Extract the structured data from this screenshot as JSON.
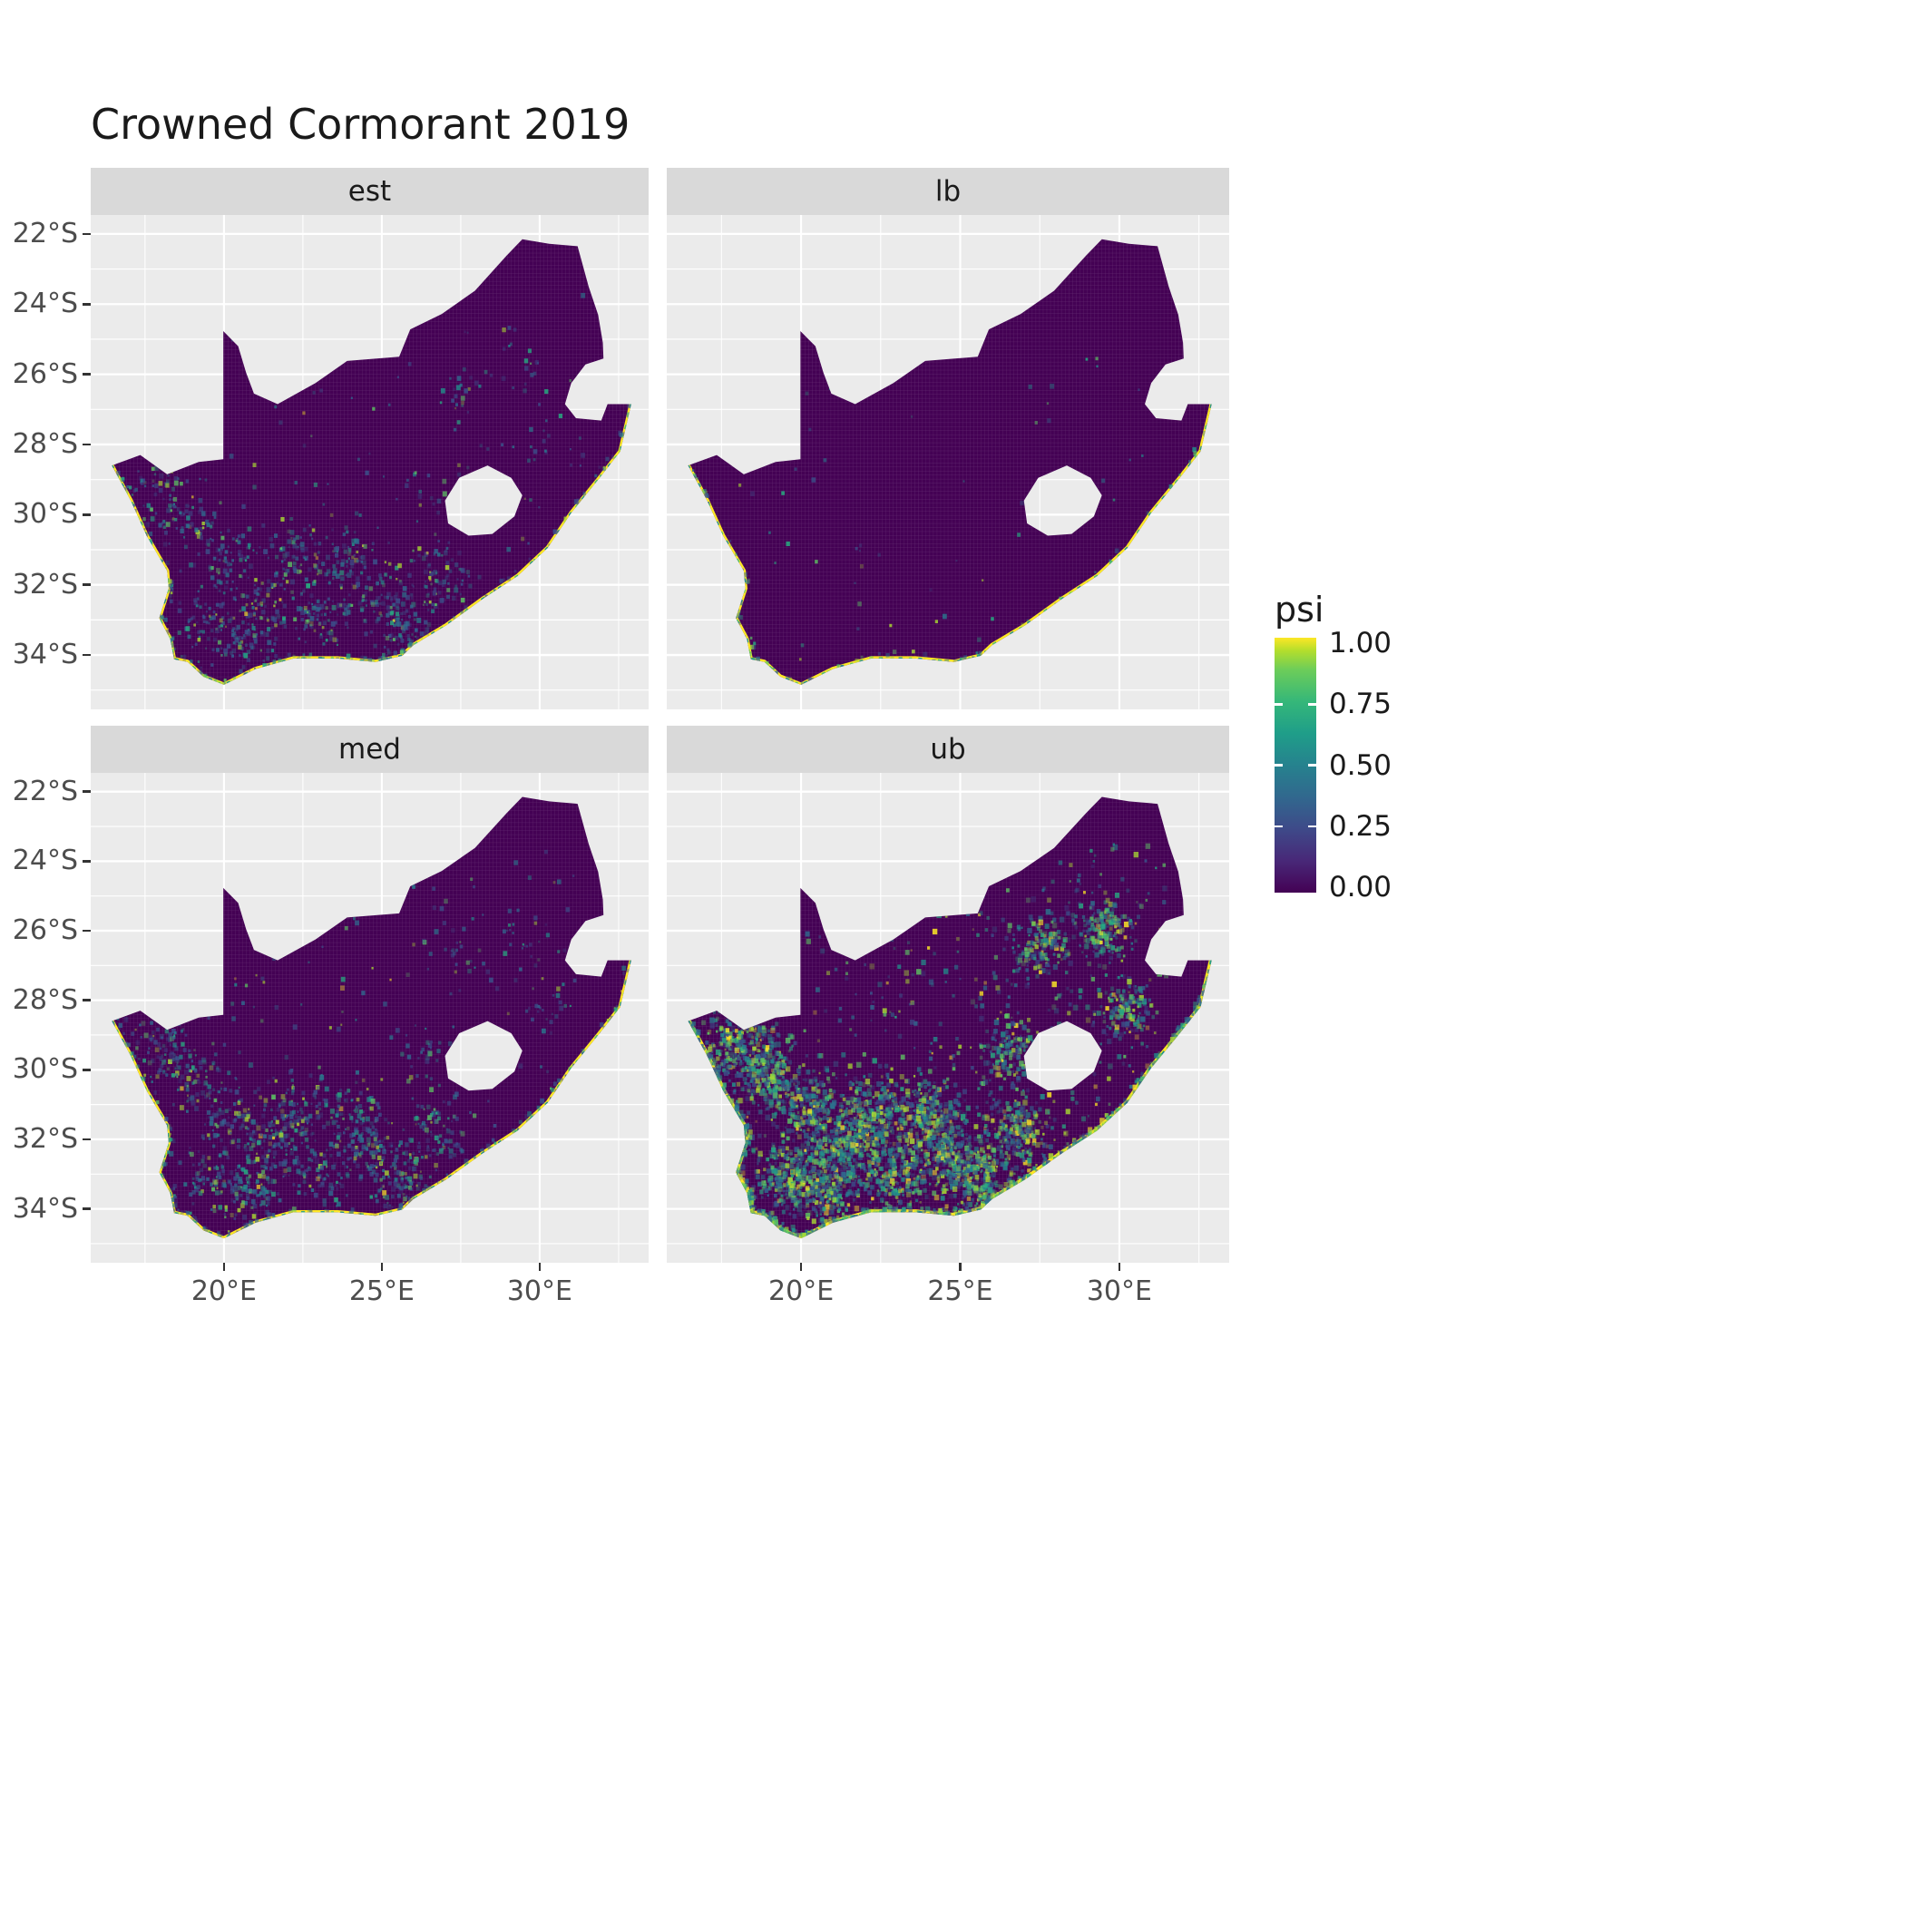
{
  "title": "Crowned Cormorant 2019",
  "chart_data": {
    "type": "heatmap",
    "title": "Crowned Cormorant 2019",
    "description": "Faceted raster maps of South Africa showing occupancy probability (psi) per grid cell; fill is viridis scale, mostly near 0 (dark purple) inland with values near 1 (yellow) along the coastline.",
    "facets": [
      {
        "label": "est",
        "coast_width": 0.13,
        "speckles": {
          "seed": 7,
          "count": 1300,
          "coast_frac": 0.18,
          "ne_frac": 0.05,
          "uniform_frac": 0.12,
          "brightness": 0.25,
          "size": 0.1,
          "yellow_chance": 0.012
        }
      },
      {
        "label": "lb",
        "coast_width": 0.13,
        "speckles": {
          "seed": 8,
          "count": 220,
          "coast_frac": 0.75,
          "ne_frac": 0.05,
          "uniform_frac": 0.1,
          "brightness": 0.5,
          "size": 0.1,
          "yellow_chance": 0.01
        }
      },
      {
        "label": "med",
        "coast_width": 0.13,
        "speckles": {
          "seed": 9,
          "count": 1600,
          "coast_frac": 0.15,
          "ne_frac": 0.05,
          "uniform_frac": 0.12,
          "brightness": 0.3,
          "size": 0.1,
          "yellow_chance": 0.012
        }
      },
      {
        "label": "ub",
        "coast_width": 0.17,
        "speckles": {
          "seed": 10,
          "count": 5200,
          "coast_frac": 0.2,
          "ne_frac": 0.12,
          "uniform_frac": 0.14,
          "brightness": 0.65,
          "size": 0.11,
          "yellow_chance": 0.05
        }
      }
    ],
    "x_ticks": [
      {
        "value": 20,
        "label": "20°E"
      },
      {
        "value": 25,
        "label": "25°E"
      },
      {
        "value": 30,
        "label": "30°E"
      }
    ],
    "y_ticks": [
      {
        "value": -22,
        "label": "22°S"
      },
      {
        "value": -24,
        "label": "24°S"
      },
      {
        "value": -26,
        "label": "26°S"
      },
      {
        "value": -28,
        "label": "28°S"
      },
      {
        "value": -30,
        "label": "30°S"
      },
      {
        "value": -32,
        "label": "32°S"
      },
      {
        "value": -34,
        "label": "34°S"
      }
    ],
    "xlim": [
      15.78,
      33.45
    ],
    "ylim": [
      -35.55,
      -21.46
    ],
    "grid": true,
    "legend_position": "right",
    "legend": {
      "title": "psi",
      "ticks": [
        {
          "value": 1.0,
          "label": "1.00"
        },
        {
          "value": 0.75,
          "label": "0.75"
        },
        {
          "value": 0.5,
          "label": "0.50"
        },
        {
          "value": 0.25,
          "label": "0.25"
        },
        {
          "value": 0.0,
          "label": "0.00"
        }
      ],
      "stops": [
        [
          0,
          "#440154"
        ],
        [
          0.125,
          "#482878"
        ],
        [
          0.25,
          "#3E4A89"
        ],
        [
          0.375,
          "#31688E"
        ],
        [
          0.5,
          "#26828E"
        ],
        [
          0.625,
          "#1F9E89"
        ],
        [
          0.75,
          "#35B779"
        ],
        [
          0.875,
          "#6DCD59"
        ],
        [
          0.95,
          "#B4DE2C"
        ],
        [
          1,
          "#FDE725"
        ]
      ]
    },
    "colors": {
      "panel_bg": "#EBEBEB",
      "grid_major": "#FFFFFF",
      "grid_minor": "#FFFFFF",
      "strip_bg": "#D9D9D9",
      "base_fill": "#440154",
      "coast": "#FDE725",
      "coast_teal": "#21918C",
      "coast_green": "#5DC863",
      "axis_text": "#4D4D4D",
      "text": "#1A1A1A",
      "speckle_palette": [
        "#3B528B",
        "#31688E",
        "#2A788E",
        "#21918C",
        "#27AD81",
        "#5DC863",
        "#AADC32"
      ]
    },
    "map": {
      "outline": [
        [
          16.45,
          -28.6
        ],
        [
          17.35,
          -28.3
        ],
        [
          18.2,
          -28.85
        ],
        [
          19.2,
          -28.5
        ],
        [
          19.98,
          -28.42
        ],
        [
          19.98,
          -24.77
        ],
        [
          20.45,
          -25.2
        ],
        [
          20.7,
          -25.95
        ],
        [
          20.95,
          -26.55
        ],
        [
          21.7,
          -26.85
        ],
        [
          22.9,
          -26.25
        ],
        [
          23.9,
          -25.62
        ],
        [
          25.55,
          -25.5
        ],
        [
          25.9,
          -24.72
        ],
        [
          26.9,
          -24.28
        ],
        [
          27.95,
          -23.62
        ],
        [
          28.95,
          -22.62
        ],
        [
          29.45,
          -22.15
        ],
        [
          30.3,
          -22.28
        ],
        [
          31.2,
          -22.35
        ],
        [
          31.55,
          -23.5
        ],
        [
          31.85,
          -24.3
        ],
        [
          32.0,
          -25.1
        ],
        [
          32.02,
          -25.55
        ],
        [
          31.45,
          -25.72
        ],
        [
          31.0,
          -26.25
        ],
        [
          30.8,
          -26.85
        ],
        [
          31.15,
          -27.25
        ],
        [
          31.95,
          -27.32
        ],
        [
          32.15,
          -26.85
        ],
        [
          32.9,
          -26.85
        ],
        [
          32.55,
          -28.2
        ],
        [
          31.9,
          -28.95
        ],
        [
          31.0,
          -29.95
        ],
        [
          30.25,
          -30.95
        ],
        [
          29.3,
          -31.75
        ],
        [
          28.2,
          -32.4
        ],
        [
          27.05,
          -33.15
        ],
        [
          26.0,
          -33.72
        ],
        [
          25.65,
          -34.02
        ],
        [
          24.8,
          -34.2
        ],
        [
          23.6,
          -34.1
        ],
        [
          22.2,
          -34.1
        ],
        [
          21.0,
          -34.4
        ],
        [
          20.0,
          -34.85
        ],
        [
          19.35,
          -34.62
        ],
        [
          18.85,
          -34.2
        ],
        [
          18.42,
          -34.12
        ],
        [
          18.3,
          -33.55
        ],
        [
          17.95,
          -32.95
        ],
        [
          18.25,
          -32.1
        ],
        [
          18.2,
          -31.6
        ],
        [
          17.55,
          -30.6
        ],
        [
          17.05,
          -29.6
        ],
        [
          16.75,
          -29.1
        ]
      ],
      "lesotho_hole": [
        [
          27.0,
          -29.6
        ],
        [
          27.45,
          -28.95
        ],
        [
          28.35,
          -28.6
        ],
        [
          29.1,
          -28.95
        ],
        [
          29.45,
          -29.45
        ],
        [
          29.2,
          -30.05
        ],
        [
          28.5,
          -30.55
        ],
        [
          27.75,
          -30.6
        ],
        [
          27.1,
          -30.25
        ]
      ],
      "coast": [
        [
          32.9,
          -26.85
        ],
        [
          32.55,
          -28.2
        ],
        [
          31.9,
          -28.95
        ],
        [
          31.0,
          -29.95
        ],
        [
          30.25,
          -30.95
        ],
        [
          29.3,
          -31.75
        ],
        [
          28.2,
          -32.4
        ],
        [
          27.05,
          -33.15
        ],
        [
          26.0,
          -33.72
        ],
        [
          25.65,
          -34.02
        ],
        [
          24.8,
          -34.2
        ],
        [
          23.6,
          -34.1
        ],
        [
          22.2,
          -34.1
        ],
        [
          21.0,
          -34.4
        ],
        [
          20.0,
          -34.85
        ],
        [
          19.35,
          -34.62
        ],
        [
          18.85,
          -34.2
        ],
        [
          18.42,
          -34.12
        ],
        [
          18.3,
          -33.55
        ],
        [
          17.95,
          -32.95
        ],
        [
          18.25,
          -32.1
        ],
        [
          18.2,
          -31.6
        ],
        [
          17.55,
          -30.6
        ],
        [
          17.05,
          -29.6
        ],
        [
          16.75,
          -29.1
        ],
        [
          16.45,
          -28.6
        ]
      ],
      "interior_clusters": [
        [
          18.0,
          -29.3
        ],
        [
          19.0,
          -30.2
        ],
        [
          20.3,
          -31.3
        ],
        [
          21.5,
          -32.4
        ],
        [
          23.0,
          -32.9
        ],
        [
          24.6,
          -32.4
        ],
        [
          22.2,
          -31.2
        ],
        [
          25.6,
          -33.1
        ],
        [
          19.6,
          -33.0
        ],
        [
          26.8,
          -31.8
        ],
        [
          20.8,
          -33.5
        ],
        [
          24.0,
          -31.3
        ]
      ],
      "ne_clusters": [
        [
          27.5,
          -26.5
        ],
        [
          29.5,
          -26.0
        ],
        [
          26.5,
          -29.5
        ],
        [
          30.2,
          -28.3
        ]
      ]
    }
  }
}
